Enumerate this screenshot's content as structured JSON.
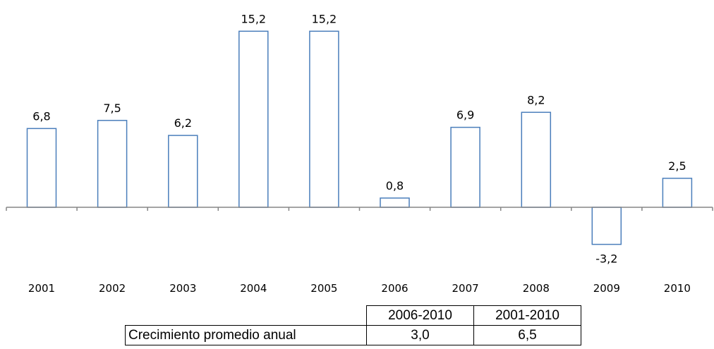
{
  "chart_data": {
    "type": "bar",
    "categories": [
      "2001",
      "2002",
      "2003",
      "2004",
      "2005",
      "2006",
      "2007",
      "2008",
      "2009",
      "2010"
    ],
    "values": [
      6.8,
      7.5,
      6.2,
      15.2,
      15.2,
      0.8,
      6.9,
      8.2,
      -3.2,
      2.5
    ],
    "data_labels": [
      "6,8",
      "7,5",
      "6,2",
      "15,2",
      "15,2",
      "0,8",
      "6,9",
      "8,2",
      "-3,2",
      "2,5"
    ],
    "bar_fill": "#ffffff",
    "bar_stroke": "#4a7ebb",
    "grid": false,
    "legend": "none"
  },
  "summary_table": {
    "headers": [
      "2006-2010",
      "2001-2010"
    ],
    "row_label": "Crecimiento promedio anual",
    "values": [
      "3,0",
      "6,5"
    ]
  }
}
